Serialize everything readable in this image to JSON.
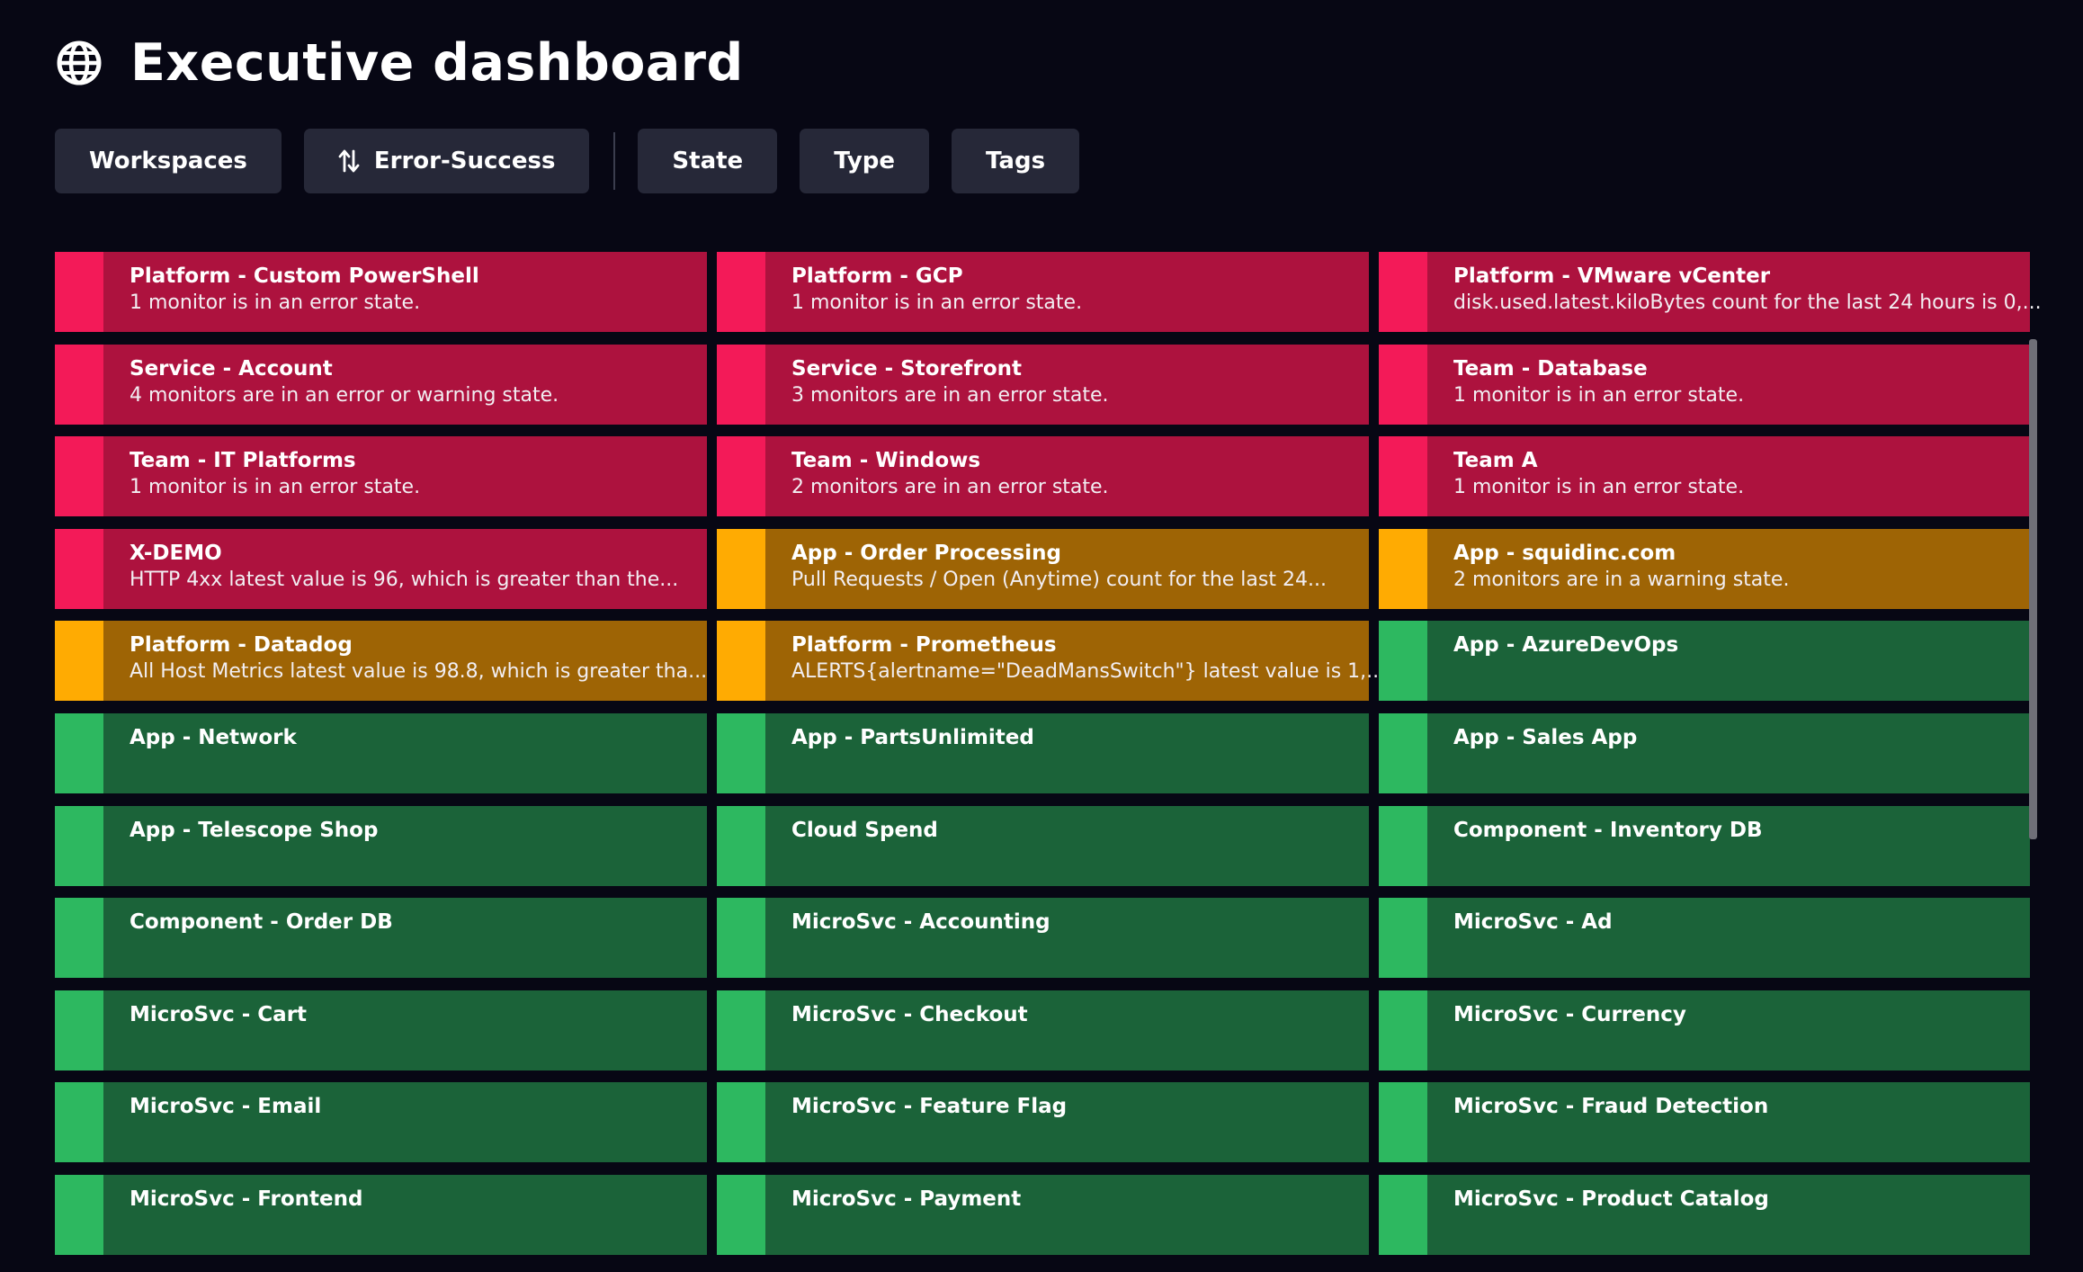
{
  "header": {
    "title": "Executive dashboard",
    "icon": "globe-icon"
  },
  "toolbar": {
    "workspaces_label": "Workspaces",
    "sort_label": "Error-Success",
    "sort_icon": "sort-arrows-icon",
    "state_label": "State",
    "type_label": "Type",
    "tags_label": "Tags"
  },
  "colors": {
    "background": "#070714",
    "error": "#ad123e",
    "error_accent": "#f31a58",
    "warning": "#9e6405",
    "warning_accent": "#ffab02",
    "success": "#1b6339",
    "success_accent": "#2db860",
    "toolbar_button": "#262838"
  },
  "tiles": [
    {
      "name": "Platform - Custom PowerShell",
      "desc": "1 monitor is in an error state.",
      "state": "error"
    },
    {
      "name": "Platform - GCP",
      "desc": "1 monitor is in an error state.",
      "state": "error"
    },
    {
      "name": "Platform - VMware vCenter",
      "desc": "disk.used.latest.kiloBytes count for the last 24 hours is 0,...",
      "state": "error"
    },
    {
      "name": "Service - Account",
      "desc": "4 monitors are in an error or warning state.",
      "state": "error"
    },
    {
      "name": "Service - Storefront",
      "desc": "3 monitors are in an error state.",
      "state": "error"
    },
    {
      "name": "Team - Database",
      "desc": "1 monitor is in an error state.",
      "state": "error"
    },
    {
      "name": "Team - IT Platforms",
      "desc": "1 monitor is in an error state.",
      "state": "error"
    },
    {
      "name": "Team - Windows",
      "desc": "2 monitors are in an error state.",
      "state": "error"
    },
    {
      "name": "Team A",
      "desc": "1 monitor is in an error state.",
      "state": "error"
    },
    {
      "name": "X-DEMO",
      "desc": "HTTP 4xx latest value is 96, which is greater than the...",
      "state": "error"
    },
    {
      "name": "App - Order Processing",
      "desc": "Pull Requests / Open (Anytime) count for the last 24...",
      "state": "warning"
    },
    {
      "name": "App - squidinc.com",
      "desc": "2 monitors are in a warning state.",
      "state": "warning"
    },
    {
      "name": "Platform - Datadog",
      "desc": "All Host Metrics latest value is 98.8, which is greater tha...",
      "state": "warning"
    },
    {
      "name": "Platform - Prometheus",
      "desc": "ALERTS{alertname=\"DeadMansSwitch\"} latest value is 1,...",
      "state": "warning"
    },
    {
      "name": "App - AzureDevOps",
      "desc": "",
      "state": "success"
    },
    {
      "name": "App - Network",
      "desc": "",
      "state": "success"
    },
    {
      "name": "App - PartsUnlimited",
      "desc": "",
      "state": "success"
    },
    {
      "name": "App - Sales App",
      "desc": "",
      "state": "success"
    },
    {
      "name": "App - Telescope Shop",
      "desc": "",
      "state": "success"
    },
    {
      "name": "Cloud Spend",
      "desc": "",
      "state": "success"
    },
    {
      "name": "Component - Inventory DB",
      "desc": "",
      "state": "success"
    },
    {
      "name": "Component - Order DB",
      "desc": "",
      "state": "success"
    },
    {
      "name": "MicroSvc - Accounting",
      "desc": "",
      "state": "success"
    },
    {
      "name": "MicroSvc - Ad",
      "desc": "",
      "state": "success"
    },
    {
      "name": "MicroSvc - Cart",
      "desc": "",
      "state": "success"
    },
    {
      "name": "MicroSvc - Checkout",
      "desc": "",
      "state": "success"
    },
    {
      "name": "MicroSvc - Currency",
      "desc": "",
      "state": "success"
    },
    {
      "name": "MicroSvc - Email",
      "desc": "",
      "state": "success"
    },
    {
      "name": "MicroSvc - Feature Flag",
      "desc": "",
      "state": "success"
    },
    {
      "name": "MicroSvc - Fraud Detection",
      "desc": "",
      "state": "success"
    },
    {
      "name": "MicroSvc - Frontend",
      "desc": "",
      "state": "success"
    },
    {
      "name": "MicroSvc - Payment",
      "desc": "",
      "state": "success"
    },
    {
      "name": "MicroSvc - Product Catalog",
      "desc": "",
      "state": "success"
    }
  ]
}
